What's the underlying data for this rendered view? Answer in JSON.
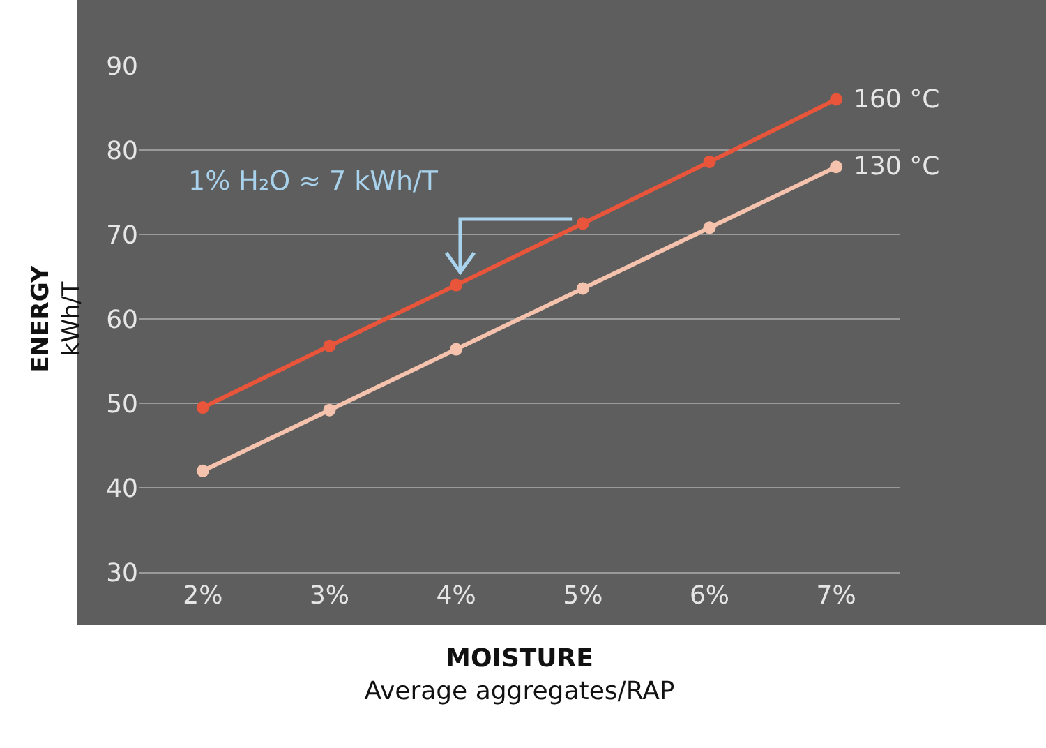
{
  "chart_data": {
    "type": "line",
    "ylabel": "ENERGY\nkWh/T",
    "xlabel": "MOISTURE\nAverage aggregates/RAP",
    "categories": [
      "2%",
      "3%",
      "4%",
      "5%",
      "6%",
      "7%"
    ],
    "series": [
      {
        "name": "160 °C",
        "color": "#e8553a",
        "values": [
          49.5,
          56.8,
          64,
          71.3,
          78.6,
          86
        ]
      },
      {
        "name": "130 °C",
        "color": "#f5c3ad",
        "values": [
          42,
          49.2,
          56.4,
          63.6,
          70.8,
          78
        ]
      }
    ],
    "ylim": [
      30,
      90
    ],
    "yticks": [
      30,
      40,
      50,
      60,
      70,
      80,
      90
    ],
    "grid": "y",
    "marker": "circle",
    "line_style": "solid",
    "annotations": [
      "1% H₂O ≈ 7 kWh/T"
    ]
  }
}
